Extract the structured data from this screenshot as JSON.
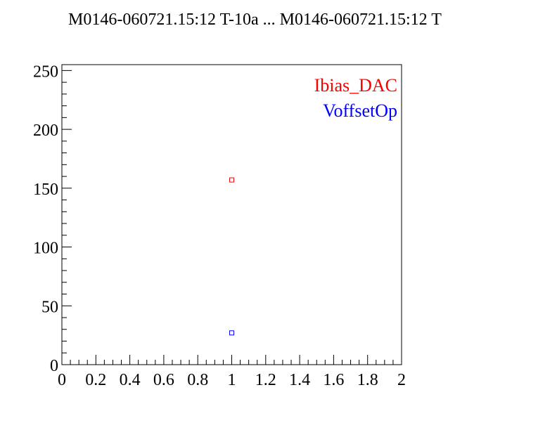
{
  "chart_data": {
    "type": "scatter",
    "title": "M0146-060721.15:12 T-10a ... M0146-060721.15:12 T",
    "xlabel": "",
    "ylabel": "",
    "xlim": [
      0,
      2
    ],
    "ylim": [
      0,
      255
    ],
    "x_ticks": [
      "0",
      "0.2",
      "0.4",
      "0.6",
      "0.8",
      "1",
      "1.2",
      "1.4",
      "1.6",
      "1.8",
      "2"
    ],
    "y_ticks": [
      "0",
      "50",
      "100",
      "150",
      "200",
      "250"
    ],
    "grid": false,
    "legend_position": "top-right",
    "series": [
      {
        "name": "Ibias_DAC",
        "color": "#ff0000",
        "marker": "open-square",
        "x": [
          1
        ],
        "y": [
          157
        ]
      },
      {
        "name": "VoffsetOp",
        "color": "#0000ff",
        "marker": "open-square",
        "x": [
          1
        ],
        "y": [
          27
        ]
      }
    ]
  }
}
